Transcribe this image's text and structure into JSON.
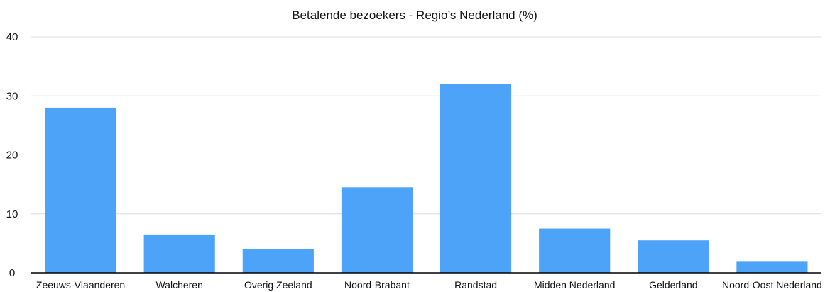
{
  "chart_data": {
    "type": "bar",
    "title": "Betalende bezoekers - Regio’s Nederland (%)",
    "xlabel": "",
    "ylabel": "",
    "categories": [
      "Zeeuws-Vlaanderen",
      "Walcheren",
      "Overig Zeeland",
      "Noord-Brabant",
      "Randstad",
      "Midden Nederland",
      "Gelderland",
      "Noord-Oost Nederland"
    ],
    "values": [
      28,
      6.5,
      4,
      14.5,
      32,
      7.5,
      5.5,
      2
    ],
    "ylim": [
      0,
      40
    ],
    "yticks": [
      "0",
      "10",
      "20",
      "30",
      "40"
    ],
    "grid": true,
    "legend": "none",
    "colors": {
      "bar": "#4da3f7",
      "grid": "#dcdcdc",
      "axis": "#000000",
      "text": "#111111"
    }
  }
}
